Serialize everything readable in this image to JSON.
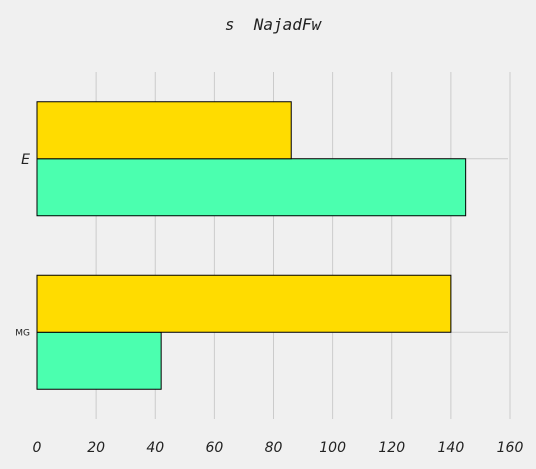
{
  "chart_data": {
    "type": "bar",
    "orientation": "horizontal",
    "title": "s  NajadFw",
    "xlabel": "",
    "ylabel": "",
    "categories": [
      "MG",
      "E"
    ],
    "series": [
      {
        "color": "#4bffaf",
        "values": [
          42,
          145
        ]
      },
      {
        "color": "#ffdc00",
        "values": [
          140,
          86
        ]
      }
    ],
    "xlim": [
      0,
      160
    ],
    "xticks": [
      0,
      20,
      40,
      60,
      80,
      100,
      120,
      140,
      160
    ],
    "grid": true,
    "legend": "none"
  }
}
